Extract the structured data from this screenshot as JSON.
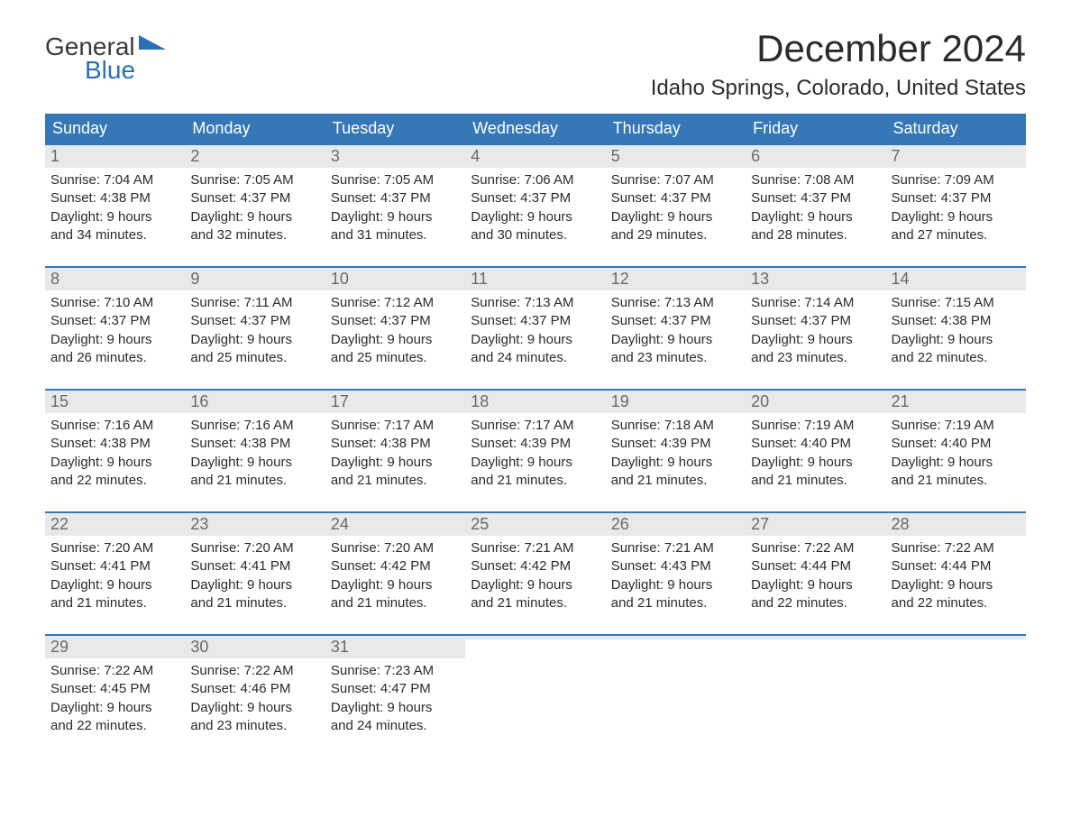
{
  "brand": {
    "top": "General",
    "bottom": "Blue",
    "flag_color": "#2a6fb5"
  },
  "title": "December 2024",
  "location": "Idaho Springs, Colorado, United States",
  "colors": {
    "header_bg": "#3677b8",
    "header_text": "#ffffff",
    "daynum_bg": "#e9e9e9",
    "daynum_text": "#6a6a6a",
    "week_border": "#3677b8",
    "body_text": "#2b2b2b",
    "page_bg": "#ffffff"
  },
  "daysOfWeek": [
    "Sunday",
    "Monday",
    "Tuesday",
    "Wednesday",
    "Thursday",
    "Friday",
    "Saturday"
  ],
  "weeks": [
    [
      {
        "n": "1",
        "sunrise": "Sunrise: 7:04 AM",
        "sunset": "Sunset: 4:38 PM",
        "d1": "Daylight: 9 hours",
        "d2": "and 34 minutes."
      },
      {
        "n": "2",
        "sunrise": "Sunrise: 7:05 AM",
        "sunset": "Sunset: 4:37 PM",
        "d1": "Daylight: 9 hours",
        "d2": "and 32 minutes."
      },
      {
        "n": "3",
        "sunrise": "Sunrise: 7:05 AM",
        "sunset": "Sunset: 4:37 PM",
        "d1": "Daylight: 9 hours",
        "d2": "and 31 minutes."
      },
      {
        "n": "4",
        "sunrise": "Sunrise: 7:06 AM",
        "sunset": "Sunset: 4:37 PM",
        "d1": "Daylight: 9 hours",
        "d2": "and 30 minutes."
      },
      {
        "n": "5",
        "sunrise": "Sunrise: 7:07 AM",
        "sunset": "Sunset: 4:37 PM",
        "d1": "Daylight: 9 hours",
        "d2": "and 29 minutes."
      },
      {
        "n": "6",
        "sunrise": "Sunrise: 7:08 AM",
        "sunset": "Sunset: 4:37 PM",
        "d1": "Daylight: 9 hours",
        "d2": "and 28 minutes."
      },
      {
        "n": "7",
        "sunrise": "Sunrise: 7:09 AM",
        "sunset": "Sunset: 4:37 PM",
        "d1": "Daylight: 9 hours",
        "d2": "and 27 minutes."
      }
    ],
    [
      {
        "n": "8",
        "sunrise": "Sunrise: 7:10 AM",
        "sunset": "Sunset: 4:37 PM",
        "d1": "Daylight: 9 hours",
        "d2": "and 26 minutes."
      },
      {
        "n": "9",
        "sunrise": "Sunrise: 7:11 AM",
        "sunset": "Sunset: 4:37 PM",
        "d1": "Daylight: 9 hours",
        "d2": "and 25 minutes."
      },
      {
        "n": "10",
        "sunrise": "Sunrise: 7:12 AM",
        "sunset": "Sunset: 4:37 PM",
        "d1": "Daylight: 9 hours",
        "d2": "and 25 minutes."
      },
      {
        "n": "11",
        "sunrise": "Sunrise: 7:13 AM",
        "sunset": "Sunset: 4:37 PM",
        "d1": "Daylight: 9 hours",
        "d2": "and 24 minutes."
      },
      {
        "n": "12",
        "sunrise": "Sunrise: 7:13 AM",
        "sunset": "Sunset: 4:37 PM",
        "d1": "Daylight: 9 hours",
        "d2": "and 23 minutes."
      },
      {
        "n": "13",
        "sunrise": "Sunrise: 7:14 AM",
        "sunset": "Sunset: 4:37 PM",
        "d1": "Daylight: 9 hours",
        "d2": "and 23 minutes."
      },
      {
        "n": "14",
        "sunrise": "Sunrise: 7:15 AM",
        "sunset": "Sunset: 4:38 PM",
        "d1": "Daylight: 9 hours",
        "d2": "and 22 minutes."
      }
    ],
    [
      {
        "n": "15",
        "sunrise": "Sunrise: 7:16 AM",
        "sunset": "Sunset: 4:38 PM",
        "d1": "Daylight: 9 hours",
        "d2": "and 22 minutes."
      },
      {
        "n": "16",
        "sunrise": "Sunrise: 7:16 AM",
        "sunset": "Sunset: 4:38 PM",
        "d1": "Daylight: 9 hours",
        "d2": "and 21 minutes."
      },
      {
        "n": "17",
        "sunrise": "Sunrise: 7:17 AM",
        "sunset": "Sunset: 4:38 PM",
        "d1": "Daylight: 9 hours",
        "d2": "and 21 minutes."
      },
      {
        "n": "18",
        "sunrise": "Sunrise: 7:17 AM",
        "sunset": "Sunset: 4:39 PM",
        "d1": "Daylight: 9 hours",
        "d2": "and 21 minutes."
      },
      {
        "n": "19",
        "sunrise": "Sunrise: 7:18 AM",
        "sunset": "Sunset: 4:39 PM",
        "d1": "Daylight: 9 hours",
        "d2": "and 21 minutes."
      },
      {
        "n": "20",
        "sunrise": "Sunrise: 7:19 AM",
        "sunset": "Sunset: 4:40 PM",
        "d1": "Daylight: 9 hours",
        "d2": "and 21 minutes."
      },
      {
        "n": "21",
        "sunrise": "Sunrise: 7:19 AM",
        "sunset": "Sunset: 4:40 PM",
        "d1": "Daylight: 9 hours",
        "d2": "and 21 minutes."
      }
    ],
    [
      {
        "n": "22",
        "sunrise": "Sunrise: 7:20 AM",
        "sunset": "Sunset: 4:41 PM",
        "d1": "Daylight: 9 hours",
        "d2": "and 21 minutes."
      },
      {
        "n": "23",
        "sunrise": "Sunrise: 7:20 AM",
        "sunset": "Sunset: 4:41 PM",
        "d1": "Daylight: 9 hours",
        "d2": "and 21 minutes."
      },
      {
        "n": "24",
        "sunrise": "Sunrise: 7:20 AM",
        "sunset": "Sunset: 4:42 PM",
        "d1": "Daylight: 9 hours",
        "d2": "and 21 minutes."
      },
      {
        "n": "25",
        "sunrise": "Sunrise: 7:21 AM",
        "sunset": "Sunset: 4:42 PM",
        "d1": "Daylight: 9 hours",
        "d2": "and 21 minutes."
      },
      {
        "n": "26",
        "sunrise": "Sunrise: 7:21 AM",
        "sunset": "Sunset: 4:43 PM",
        "d1": "Daylight: 9 hours",
        "d2": "and 21 minutes."
      },
      {
        "n": "27",
        "sunrise": "Sunrise: 7:22 AM",
        "sunset": "Sunset: 4:44 PM",
        "d1": "Daylight: 9 hours",
        "d2": "and 22 minutes."
      },
      {
        "n": "28",
        "sunrise": "Sunrise: 7:22 AM",
        "sunset": "Sunset: 4:44 PM",
        "d1": "Daylight: 9 hours",
        "d2": "and 22 minutes."
      }
    ],
    [
      {
        "n": "29",
        "sunrise": "Sunrise: 7:22 AM",
        "sunset": "Sunset: 4:45 PM",
        "d1": "Daylight: 9 hours",
        "d2": "and 22 minutes."
      },
      {
        "n": "30",
        "sunrise": "Sunrise: 7:22 AM",
        "sunset": "Sunset: 4:46 PM",
        "d1": "Daylight: 9 hours",
        "d2": "and 23 minutes."
      },
      {
        "n": "31",
        "sunrise": "Sunrise: 7:23 AM",
        "sunset": "Sunset: 4:47 PM",
        "d1": "Daylight: 9 hours",
        "d2": "and 24 minutes."
      },
      {
        "n": "",
        "sunrise": "",
        "sunset": "",
        "d1": "",
        "d2": ""
      },
      {
        "n": "",
        "sunrise": "",
        "sunset": "",
        "d1": "",
        "d2": ""
      },
      {
        "n": "",
        "sunrise": "",
        "sunset": "",
        "d1": "",
        "d2": ""
      },
      {
        "n": "",
        "sunrise": "",
        "sunset": "",
        "d1": "",
        "d2": ""
      }
    ]
  ]
}
